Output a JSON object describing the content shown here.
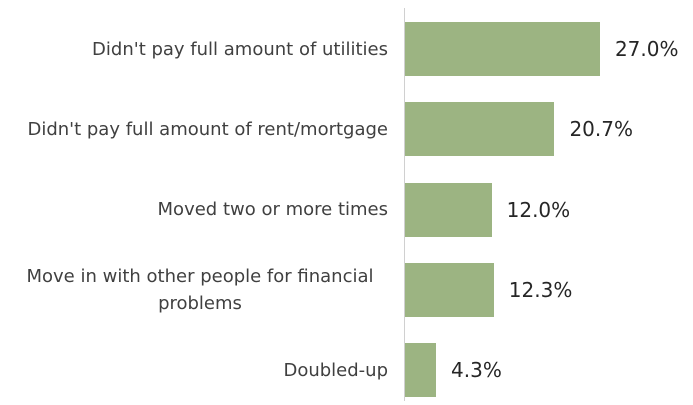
{
  "chart_data": {
    "type": "bar",
    "orientation": "horizontal",
    "categories": [
      "Didn't pay full amount of utilities",
      "Didn't pay full amount of rent/mortgage",
      "Moved two or more times",
      "Move in with other people for financial problems",
      "Doubled-up"
    ],
    "values": [
      27.0,
      20.7,
      12.0,
      12.3,
      4.3
    ],
    "value_labels": [
      "27.0%",
      "20.7%",
      "12.0%",
      "12.3%",
      "4.3%"
    ],
    "color": "#9cb482"
  }
}
